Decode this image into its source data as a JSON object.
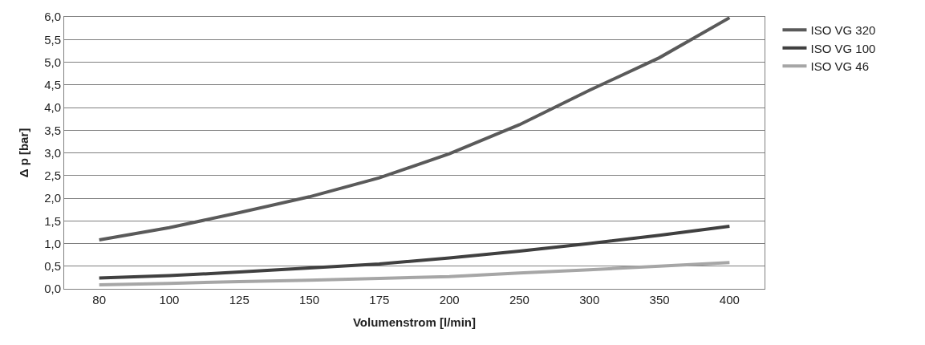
{
  "chart_data": {
    "type": "line",
    "xlabel": "Volumenstrom [l/min]",
    "ylabel": "Δ p [bar]",
    "categories": [
      "80",
      "100",
      "125",
      "150",
      "175",
      "200",
      "250",
      "300",
      "350",
      "400"
    ],
    "series": [
      {
        "name": "ISO VG 320",
        "color": "#5a5a5a",
        "values": [
          1.08,
          1.35,
          1.68,
          2.03,
          2.45,
          2.98,
          3.62,
          4.38,
          5.1,
          5.98
        ]
      },
      {
        "name": "ISO VG 100",
        "color": "#404040",
        "values": [
          0.24,
          0.29,
          0.37,
          0.46,
          0.55,
          0.68,
          0.83,
          1.0,
          1.18,
          1.38
        ]
      },
      {
        "name": "ISO VG 46",
        "color": "#a6a6a6",
        "values": [
          0.09,
          0.12,
          0.16,
          0.19,
          0.23,
          0.27,
          0.35,
          0.42,
          0.5,
          0.58
        ]
      }
    ],
    "ylim": [
      0,
      6
    ],
    "yticks": [
      {
        "value": 0,
        "label": "0,0"
      },
      {
        "value": 0.5,
        "label": "0,5"
      },
      {
        "value": 1,
        "label": "1,0"
      },
      {
        "value": 1.5,
        "label": "1,5"
      },
      {
        "value": 2,
        "label": "2,0"
      },
      {
        "value": 2.5,
        "label": "2,5"
      },
      {
        "value": 3,
        "label": "3,0"
      },
      {
        "value": 3.5,
        "label": "3,5"
      },
      {
        "value": 4,
        "label": "4,0"
      },
      {
        "value": 4.5,
        "label": "4,5"
      },
      {
        "value": 5,
        "label": "5,0"
      },
      {
        "value": 5.5,
        "label": "5,5"
      },
      {
        "value": 6,
        "label": "6,0"
      }
    ],
    "grid": "y",
    "legend": "right",
    "marker": "none",
    "line_style": "solid"
  }
}
